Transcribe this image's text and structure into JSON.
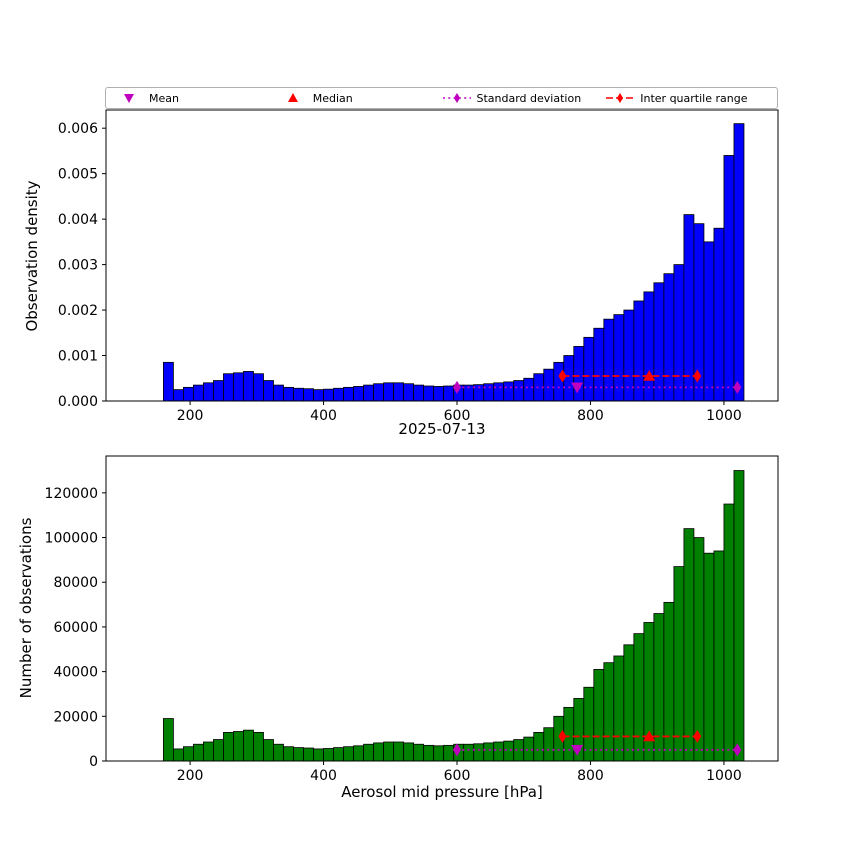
{
  "figure": {
    "background": "#ffffff"
  },
  "legend": {
    "items": [
      {
        "label": "Mean",
        "marker": "triangle-down",
        "color": "#bf00bf",
        "line": "none"
      },
      {
        "label": "Median",
        "marker": "triangle-up",
        "color": "#ff0000",
        "line": "none"
      },
      {
        "label": "Standard deviation",
        "marker": "diamond",
        "color": "#bf00bf",
        "line": "dotted"
      },
      {
        "label": "Inter quartile range",
        "marker": "diamond",
        "color": "#ff0000",
        "line": "dashed"
      }
    ]
  },
  "chart_data": [
    {
      "type": "bar",
      "subplot": "top",
      "title": "",
      "xlabel": "",
      "ylabel": "Observation density",
      "bar_color": "#0000ff",
      "bar_edge": "#000000",
      "bins": {
        "start": 160,
        "width": 15
      },
      "values": [
        0.00085,
        0.00025,
        0.0003,
        0.00035,
        0.0004,
        0.00045,
        0.0006,
        0.00062,
        0.00065,
        0.0006,
        0.00045,
        0.00035,
        0.0003,
        0.00028,
        0.00027,
        0.00025,
        0.00026,
        0.00028,
        0.0003,
        0.00032,
        0.00035,
        0.00038,
        0.0004,
        0.0004,
        0.00038,
        0.00035,
        0.00033,
        0.00032,
        0.00033,
        0.00035,
        0.00035,
        0.00036,
        0.00038,
        0.0004,
        0.00042,
        0.00045,
        0.0005,
        0.0006,
        0.0007,
        0.00085,
        0.001,
        0.0012,
        0.0014,
        0.0016,
        0.0018,
        0.0019,
        0.002,
        0.0022,
        0.0024,
        0.0026,
        0.0028,
        0.003,
        0.0041,
        0.0039,
        0.0035,
        0.0038,
        0.0054,
        0.0061
      ],
      "xlim": [
        74,
        1081
      ],
      "ylim": [
        0,
        0.0064
      ],
      "xticks": [
        200,
        400,
        600,
        800,
        1000
      ],
      "yticks": {
        "values": [
          0,
          0.001,
          0.002,
          0.003,
          0.004,
          0.005,
          0.006
        ],
        "labels": [
          "0.000",
          "0.001",
          "0.002",
          "0.003",
          "0.004",
          "0.005",
          "0.006"
        ]
      },
      "overlays": {
        "mean": {
          "x": 780,
          "y": 0.0003,
          "color": "#bf00bf",
          "marker": "triangle-down"
        },
        "median": {
          "x": 888,
          "y": 0.00055,
          "color": "#ff0000",
          "marker": "triangle-up"
        },
        "std": {
          "x1": 600,
          "x2": 1020,
          "y": 0.0003,
          "color": "#bf00bf",
          "style": "dotted",
          "marker": "diamond"
        },
        "iqr": {
          "x1": 758,
          "x2": 960,
          "y": 0.00055,
          "color": "#ff0000",
          "style": "dashed",
          "marker": "diamond"
        }
      }
    },
    {
      "type": "bar",
      "subplot": "bottom",
      "title": "2025-07-13",
      "xlabel": "Aerosol mid pressure [hPa]",
      "ylabel": "Number of observations",
      "bar_color": "#008000",
      "bar_edge": "#000000",
      "bins": {
        "start": 160,
        "width": 15
      },
      "values": [
        19000,
        5400,
        6400,
        7500,
        8500,
        9600,
        12800,
        13200,
        13800,
        12800,
        9600,
        7500,
        6400,
        6000,
        5800,
        5400,
        5600,
        6000,
        6400,
        6800,
        7500,
        8100,
        8500,
        8500,
        8100,
        7500,
        7000,
        6800,
        7000,
        7500,
        7500,
        7700,
        8100,
        8500,
        8900,
        9600,
        10700,
        12800,
        14900,
        20000,
        24000,
        28000,
        33000,
        41000,
        44000,
        47000,
        52000,
        57000,
        62000,
        66000,
        71000,
        87000,
        104000,
        100000,
        93000,
        94000,
        115000,
        130000
      ],
      "xlim": [
        74,
        1081
      ],
      "ylim": [
        0,
        136500
      ],
      "xticks": [
        200,
        400,
        600,
        800,
        1000
      ],
      "yticks": {
        "values": [
          0,
          20000,
          40000,
          60000,
          80000,
          100000,
          120000
        ],
        "labels": [
          "0",
          "20000",
          "40000",
          "60000",
          "80000",
          "100000",
          "120000"
        ]
      },
      "overlays": {
        "mean": {
          "x": 780,
          "y": 5000,
          "color": "#bf00bf",
          "marker": "triangle-down"
        },
        "median": {
          "x": 888,
          "y": 11000,
          "color": "#ff0000",
          "marker": "triangle-up"
        },
        "std": {
          "x1": 600,
          "x2": 1020,
          "y": 5000,
          "color": "#bf00bf",
          "style": "dotted",
          "marker": "diamond"
        },
        "iqr": {
          "x1": 758,
          "x2": 960,
          "y": 11000,
          "color": "#ff0000",
          "style": "dashed",
          "marker": "diamond"
        }
      }
    }
  ]
}
